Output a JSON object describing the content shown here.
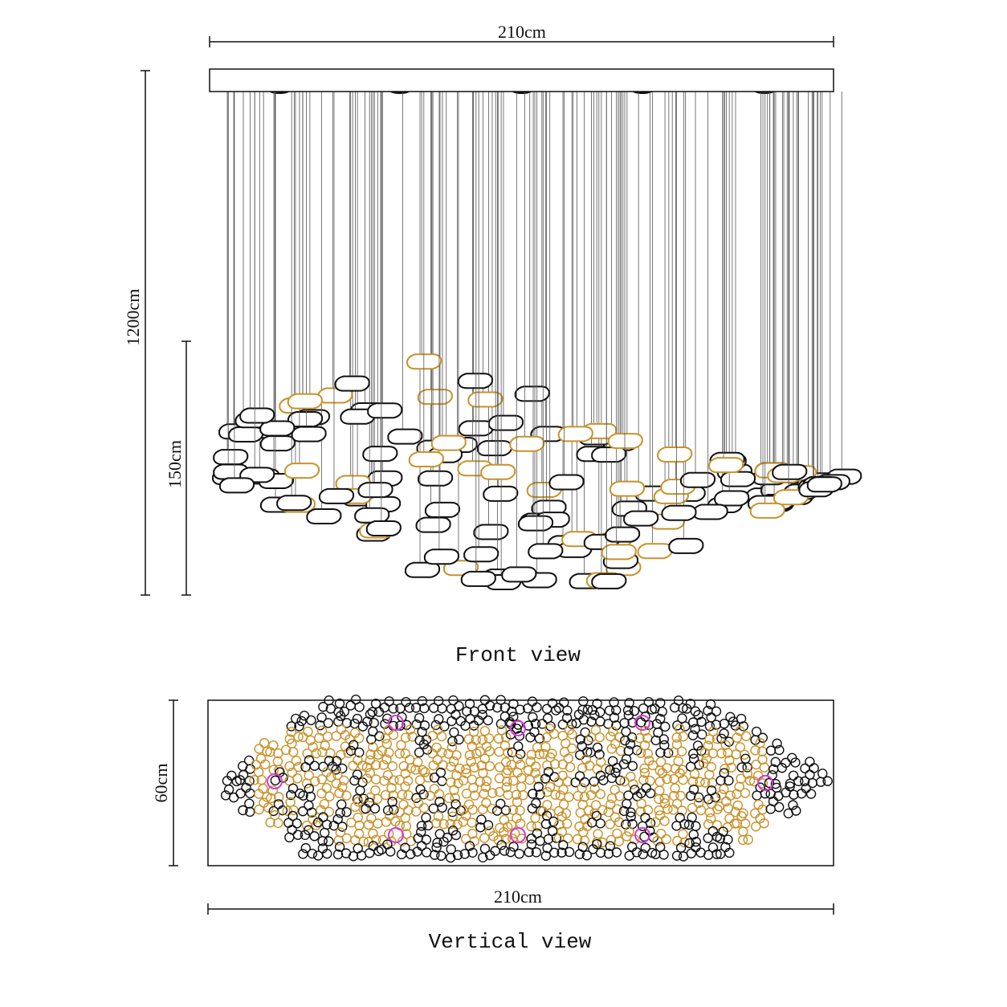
{
  "front_view": {
    "width_label": "210cm",
    "height_label": "1200cm",
    "drop_label": "150cm",
    "caption": "Front view"
  },
  "vertical_view": {
    "depth_label": "60cm",
    "width_label": "210cm",
    "caption": "Vertical view"
  }
}
